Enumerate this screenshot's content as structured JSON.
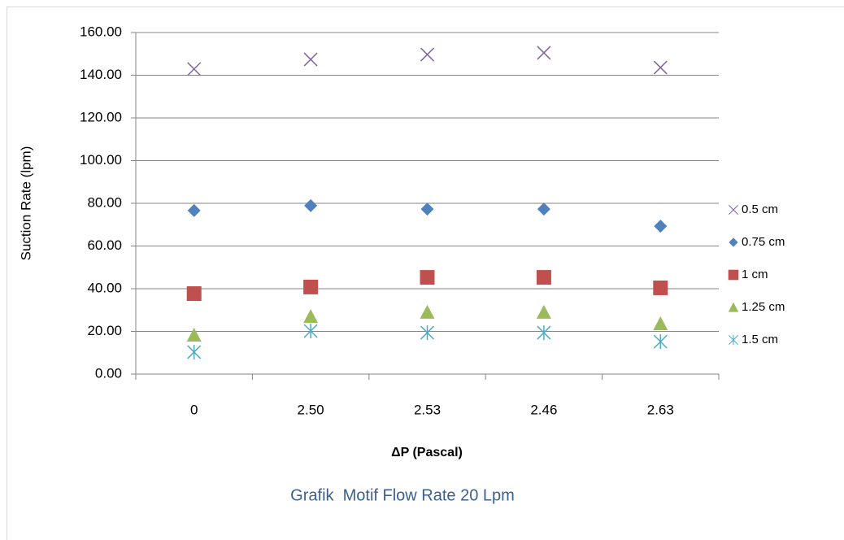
{
  "chart_data": {
    "type": "scatter",
    "title": "Grafik  Motif Flow Rate 20 Lpm",
    "x_label": "ΔP (Pascal)",
    "y_label": "Suction Rate (lpm)",
    "categories": [
      "0",
      "2.50",
      "2.53",
      "2.46",
      "2.63"
    ],
    "series": [
      {
        "name": "0.5 cm",
        "color": "#8064a2",
        "marker": "x",
        "values": [
          142.9,
          147.4,
          149.7,
          150.5,
          143.6
        ]
      },
      {
        "name": "0.75 cm",
        "color": "#4f81bd",
        "marker": "diamond",
        "values": [
          76.6,
          78.9,
          77.3,
          77.3,
          69.3
        ]
      },
      {
        "name": "1 cm",
        "color": "#c0504d",
        "marker": "square",
        "values": [
          37.7,
          40.8,
          45.3,
          45.3,
          40.4
        ]
      },
      {
        "name": "1.25 cm",
        "color": "#9bbb59",
        "marker": "triangle",
        "values": [
          18.3,
          27.0,
          29.0,
          29.0,
          23.6
        ]
      },
      {
        "name": "1.5 cm",
        "color": "#4bacc6",
        "marker": "asterisk",
        "values": [
          10.3,
          20.2,
          19.4,
          19.4,
          15.2
        ]
      }
    ],
    "ylim": [
      0,
      160
    ],
    "yticks": [
      {
        "value": 0,
        "label": "0.00"
      },
      {
        "value": 20,
        "label": "20.00"
      },
      {
        "value": 40,
        "label": "40.00"
      },
      {
        "value": 60,
        "label": "60.00"
      },
      {
        "value": 80,
        "label": "80.00"
      },
      {
        "value": 100,
        "label": "100.00"
      },
      {
        "value": 120,
        "label": "120.00"
      },
      {
        "value": 140,
        "label": "140.00"
      },
      {
        "value": 160,
        "label": "160.00"
      }
    ],
    "grid": true,
    "legend": "right"
  }
}
